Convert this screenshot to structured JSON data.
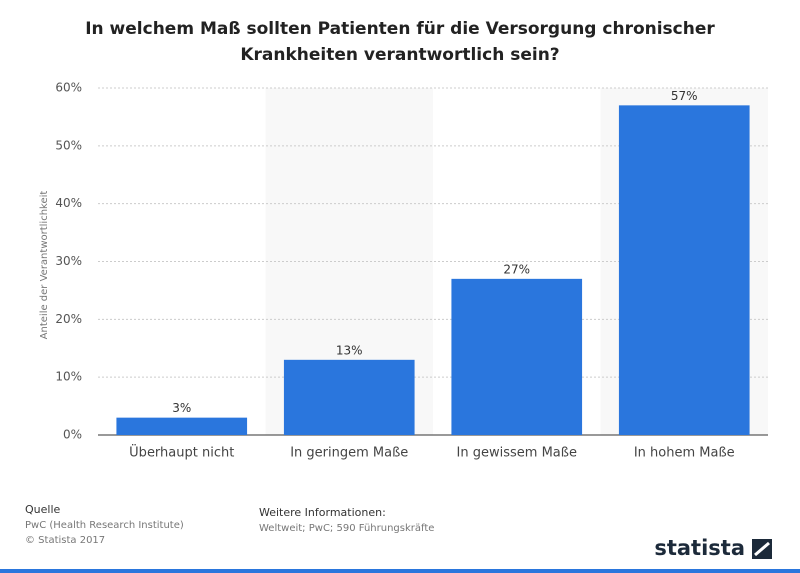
{
  "chart_data": {
    "type": "bar",
    "title": "In welchem Maß sollten Patienten für die Versorgung chronischer Krankheiten verantwortlich sein?",
    "y_label": "Anteile der Verantwortlichkeit",
    "categories": [
      "Überhaupt nicht",
      "In geringem Maße",
      "In gewissem Maße",
      "In hohem Maße"
    ],
    "values": [
      3,
      13,
      27,
      57
    ],
    "value_labels": [
      "3%",
      "13%",
      "27%",
      "57%"
    ],
    "color": "#2a76dd",
    "ylim": [
      0,
      60
    ],
    "yticks": [
      {
        "value": 0,
        "label": "0%"
      },
      {
        "value": 10,
        "label": "10%"
      },
      {
        "value": 20,
        "label": "20%"
      },
      {
        "value": 30,
        "label": "30%"
      },
      {
        "value": 40,
        "label": "40%"
      },
      {
        "value": 50,
        "label": "50%"
      },
      {
        "value": 60,
        "label": "60%"
      }
    ],
    "grid": true
  },
  "footer": {
    "source_heading": "Quelle",
    "source": "PwC (Health Research Institute)",
    "copyright": "© Statista 2017",
    "info_heading": "Weitere Informationen:",
    "info": "Weltweit; PwC; 590 Führungskräfte",
    "logo": "statista"
  }
}
